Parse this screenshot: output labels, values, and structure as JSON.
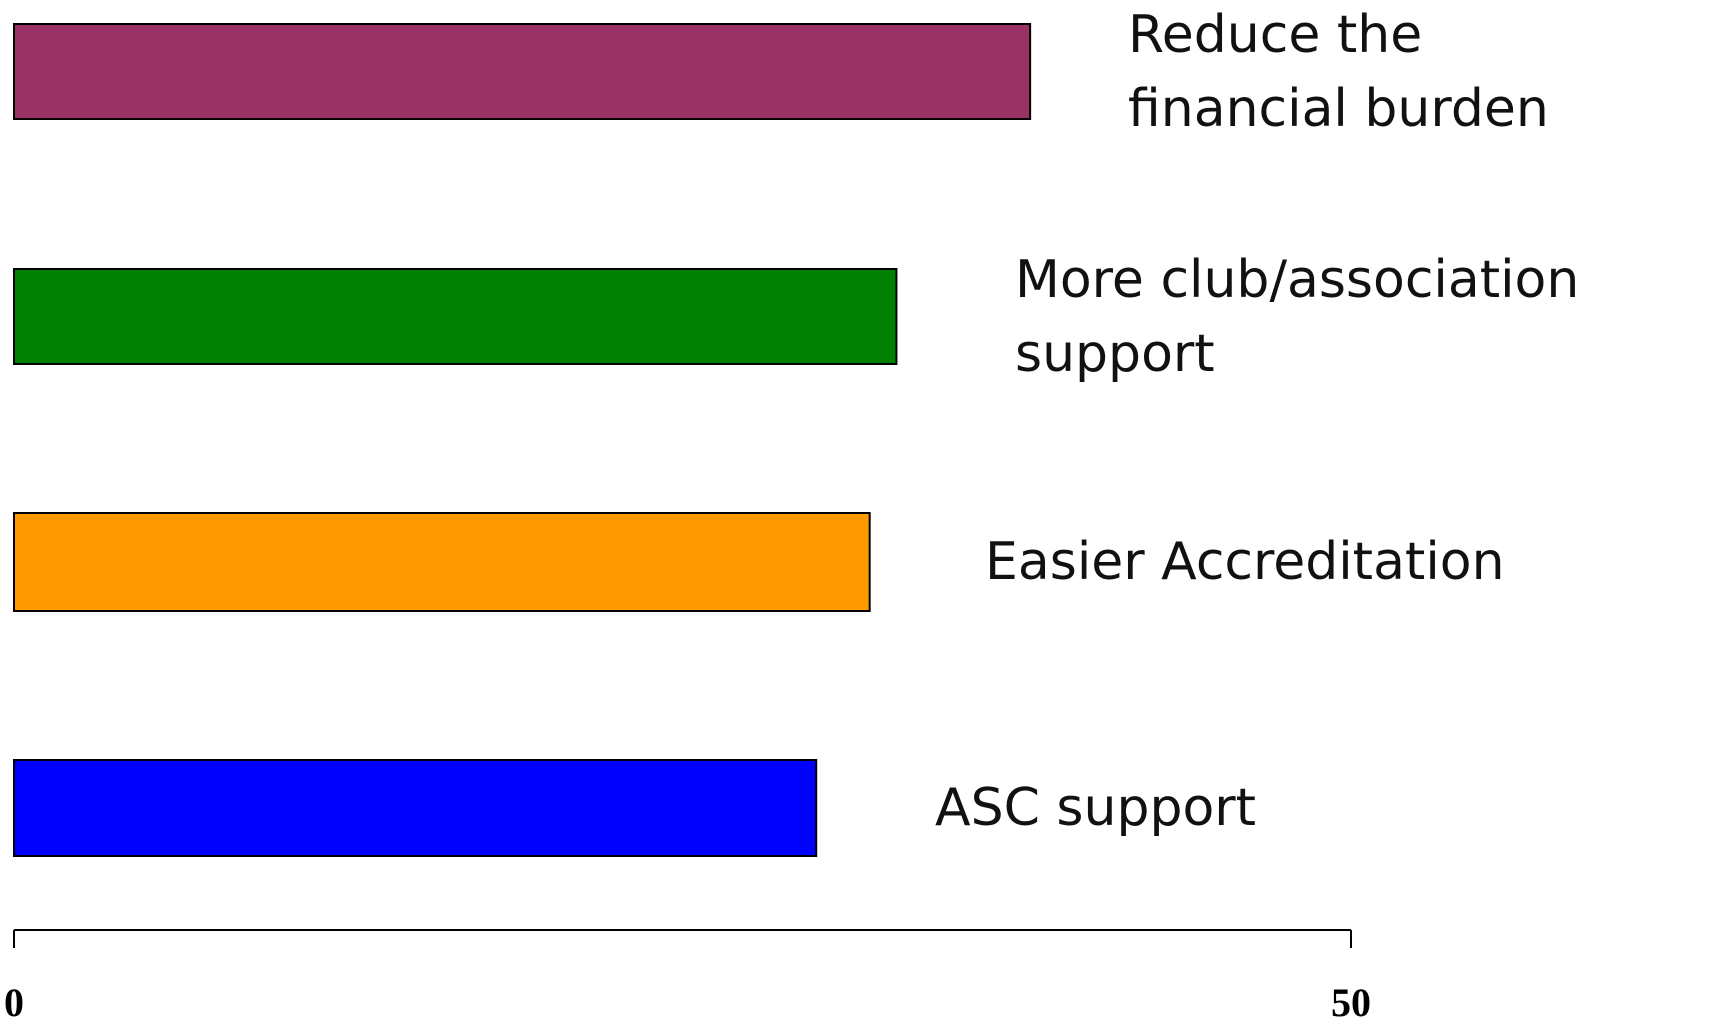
{
  "chart_data": {
    "type": "barh",
    "categories": [
      "Reduce the\nfinancial burden",
      "More club/association\nsupport",
      "Easier Accreditation",
      "ASC support"
    ],
    "values": [
      38,
      33,
      32,
      30
    ],
    "colors": [
      "#993366",
      "#008000",
      "#ff9900",
      "#0000ff"
    ],
    "xlim": [
      0,
      50
    ],
    "xticks": [
      0,
      50
    ]
  }
}
